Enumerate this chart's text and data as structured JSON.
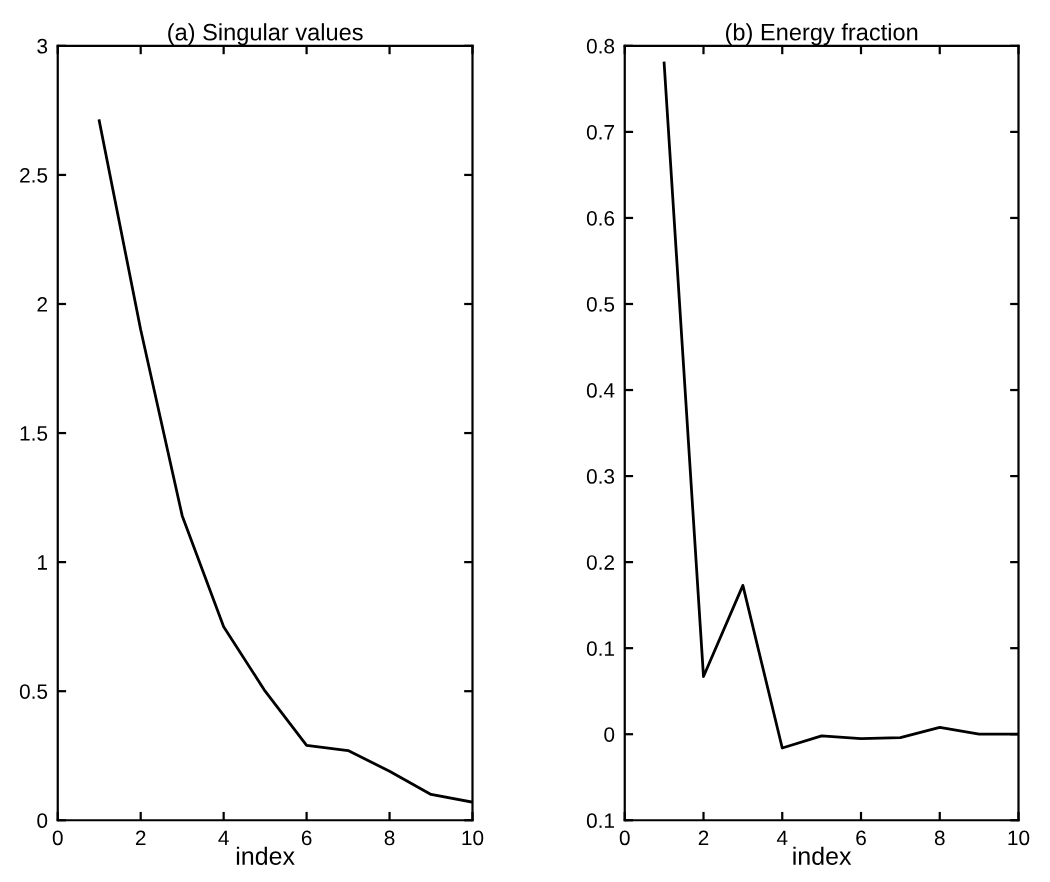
{
  "chart_data": [
    {
      "type": "line",
      "title": "(a) Singular values",
      "xlabel": "index",
      "x": [
        1,
        2,
        3,
        4,
        5,
        6,
        7,
        8,
        9,
        10
      ],
      "series": [
        {
          "color": "#000000",
          "values": [
            2.71,
            1.9,
            1.18,
            0.75,
            0.5,
            0.29,
            0.27,
            0.19,
            0.1,
            0.07
          ]
        }
      ],
      "xlim": [
        0,
        10
      ],
      "xticks": [
        0,
        2,
        4,
        6,
        8,
        10
      ],
      "ylim": [
        0,
        3
      ],
      "yticks": [
        0,
        0.5,
        1,
        1.5,
        2,
        2.5,
        3
      ],
      "grid": false,
      "legend": false
    },
    {
      "type": "line",
      "title": "(b) Energy fraction",
      "xlabel": "index",
      "x": [
        1,
        2,
        3,
        4,
        5,
        6,
        7,
        8,
        9,
        10
      ],
      "series": [
        {
          "color": "#000000",
          "values": [
            0.78,
            0.067,
            0.173,
            -0.016,
            -0.002,
            -0.005,
            -0.004,
            0.008,
            0.0,
            0.0
          ]
        }
      ],
      "xlim": [
        0,
        10
      ],
      "xticks": [
        0,
        2,
        4,
        6,
        8,
        10
      ],
      "ylim": [
        -0.1,
        0.8
      ],
      "yticks": [
        {
          "value": -0.1,
          "label": "0.1"
        },
        0,
        0.1,
        0.2,
        0.3,
        0.4,
        0.5,
        0.6,
        0.7,
        0.8
      ],
      "grid": false,
      "legend": false
    }
  ]
}
